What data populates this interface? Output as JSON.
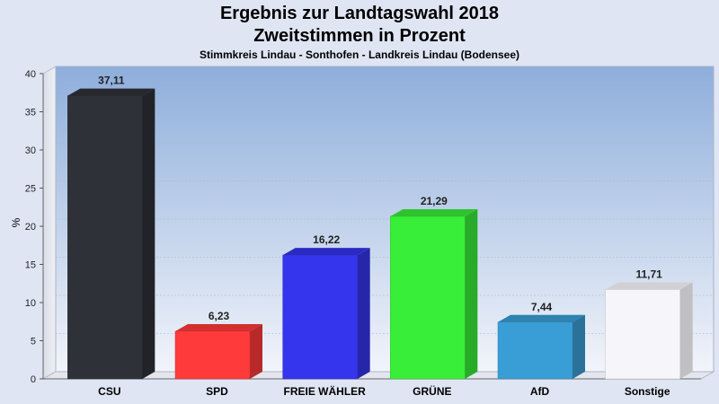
{
  "chart_data": {
    "type": "bar",
    "title": "Ergebnis zur Landtagswahl 2018",
    "subtitle": "Zweitstimmen in Prozent",
    "caption": "Stimmkreis Lindau - Sonthofen - Landkreis Lindau (Bodensee)",
    "ylabel": "%",
    "ylim": [
      0,
      40
    ],
    "yticks": [
      0,
      5,
      10,
      15,
      20,
      25,
      30,
      35,
      40
    ],
    "categories": [
      "CSU",
      "SPD",
      "FREIE WÄHLER",
      "GRÜNE",
      "AfD",
      "Sonstige"
    ],
    "values": [
      37.11,
      6.23,
      16.22,
      21.29,
      7.44,
      11.71
    ],
    "value_labels": [
      "37,11",
      "6,23",
      "16,22",
      "21,29",
      "7,44",
      "11,71"
    ],
    "colors": [
      "#2e3138",
      "#ff3a3a",
      "#3535ee",
      "#38ee38",
      "#3a9ed6",
      "#f6f6fa"
    ],
    "grid": true,
    "legend": "none"
  }
}
